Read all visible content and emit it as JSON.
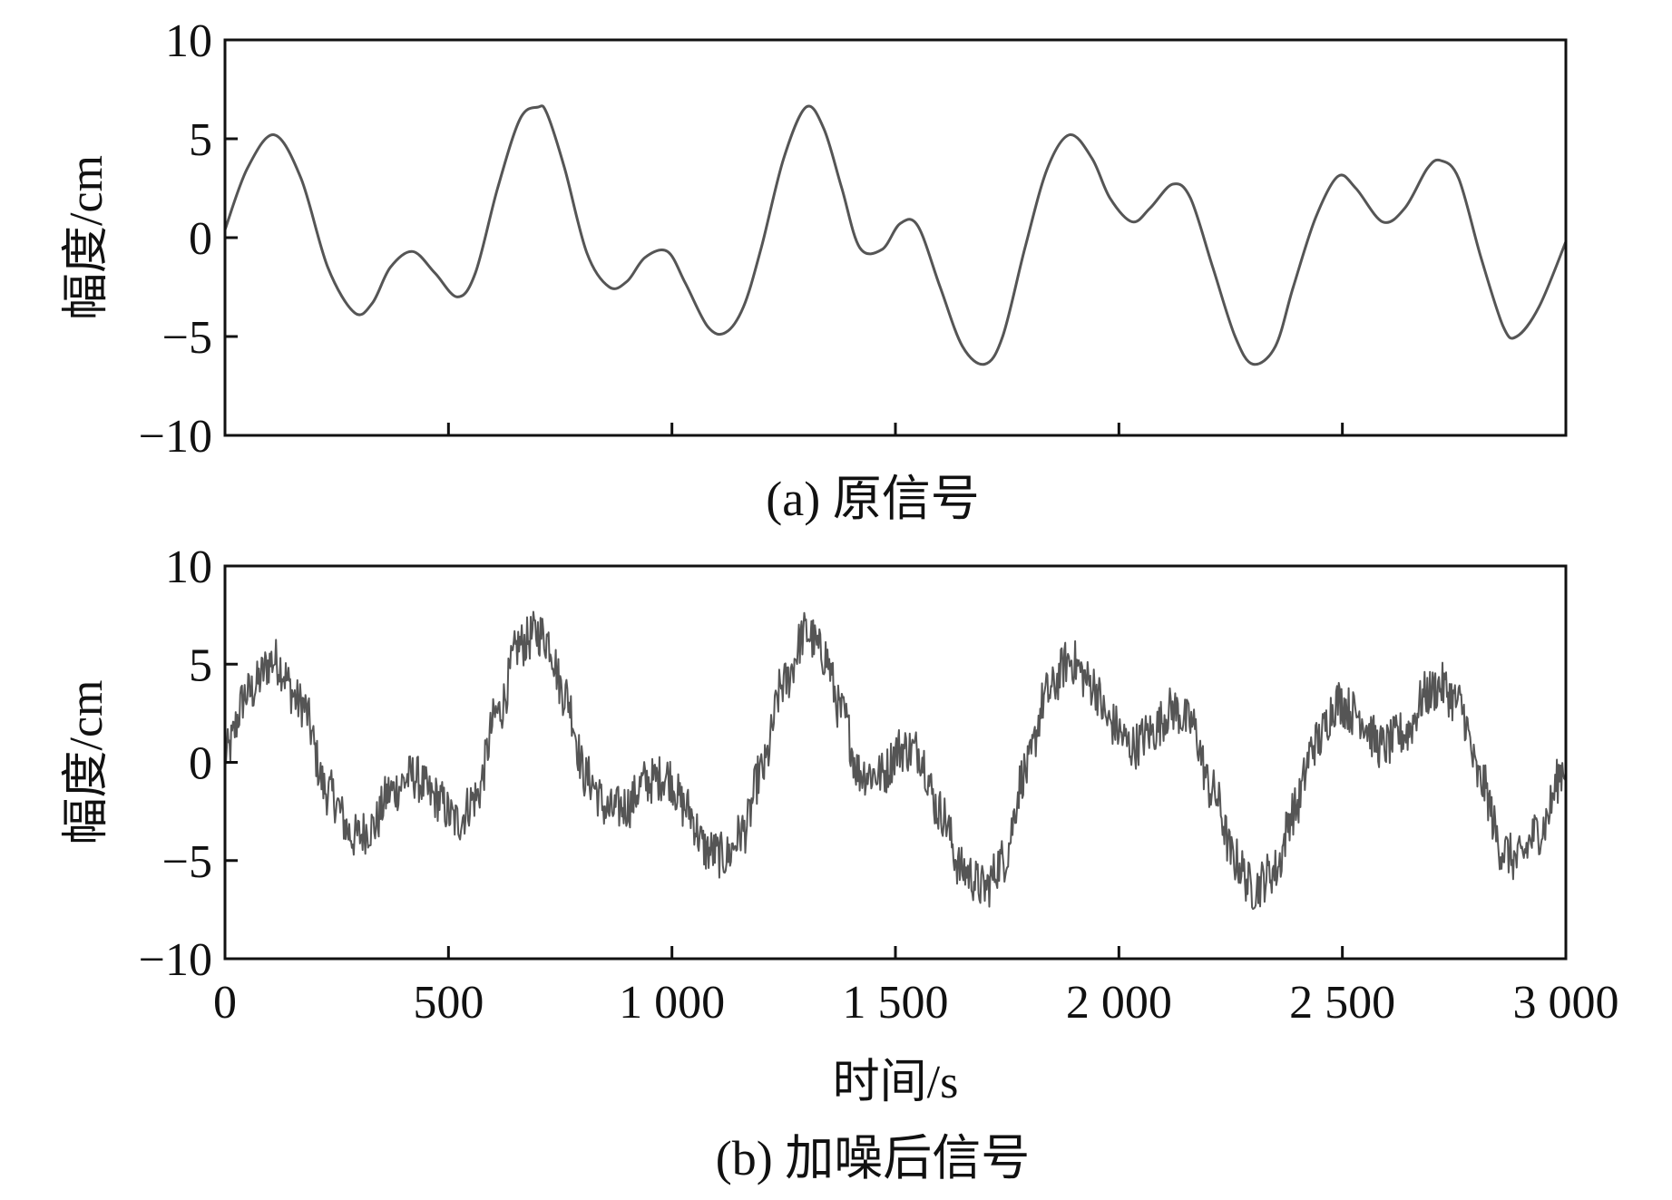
{
  "chart_data": [
    {
      "type": "line",
      "caption": "(a) 原信号",
      "ylabel": "幅度/cm",
      "xlabel": "",
      "xlim": [
        0,
        3000
      ],
      "ylim": [
        -10,
        10
      ],
      "yticks": [
        10,
        5,
        0,
        -5,
        -10
      ],
      "ytick_labels": [
        "10",
        "5",
        "0",
        "−5",
        "−10"
      ],
      "xticks": [
        0,
        500,
        1000,
        1500,
        2000,
        2500,
        3000
      ],
      "xtick_labels": [],
      "line_color": "#555555",
      "noisy": false,
      "series": [
        {
          "x": [
            0,
            50,
            110,
            170,
            230,
            290,
            330,
            370,
            420,
            470,
            520,
            560,
            610,
            660,
            700,
            720,
            760,
            810,
            860,
            900,
            940,
            990,
            1030,
            1080,
            1120,
            1160,
            1200,
            1250,
            1300,
            1340,
            1380,
            1420,
            1470,
            1510,
            1550,
            1600,
            1650,
            1700,
            1740,
            1790,
            1840,
            1890,
            1940,
            1980,
            2030,
            2070,
            2120,
            2160,
            2210,
            2260,
            2300,
            2350,
            2390,
            2440,
            2490,
            2530,
            2590,
            2640,
            2690,
            2720,
            2760,
            2810,
            2860,
            2890,
            2940,
            3000
          ],
          "y": [
            0.4,
            3.5,
            5.2,
            3.0,
            -1.5,
            -3.8,
            -3.3,
            -1.5,
            -0.7,
            -1.8,
            -3.0,
            -1.8,
            2.5,
            6.0,
            6.6,
            6.3,
            3.5,
            -0.8,
            -2.5,
            -2.2,
            -1.0,
            -0.7,
            -2.3,
            -4.5,
            -4.8,
            -3.5,
            -0.5,
            4.0,
            6.6,
            5.5,
            2.5,
            -0.5,
            -0.6,
            0.7,
            0.6,
            -2.5,
            -5.5,
            -6.4,
            -5.0,
            -0.5,
            3.5,
            5.2,
            4.0,
            2.0,
            0.8,
            1.5,
            2.7,
            2.0,
            -1.5,
            -5.0,
            -6.4,
            -5.5,
            -2.5,
            1.0,
            3.1,
            2.5,
            0.8,
            1.5,
            3.5,
            3.9,
            3.0,
            -1.0,
            -4.5,
            -5.0,
            -3.5,
            -0.2
          ]
        }
      ]
    },
    {
      "type": "line",
      "caption": "(b) 加噪后信号",
      "ylabel": "幅度/cm",
      "xlabel": "时间/s",
      "xlim": [
        0,
        3000
      ],
      "ylim": [
        -10,
        10
      ],
      "yticks": [
        10,
        5,
        0,
        -5,
        -10
      ],
      "ytick_labels": [
        "10",
        "5",
        "0",
        "−5",
        "−10"
      ],
      "xticks": [
        0,
        500,
        1000,
        1500,
        2000,
        2500,
        3000
      ],
      "xtick_labels": [
        "0",
        "500",
        "1 000",
        "1 500",
        "2 000",
        "2 500",
        "3 000"
      ],
      "line_color": "#444444",
      "noisy": true,
      "noise_amplitude": 1.2,
      "series": [
        {
          "x": [
            0,
            50,
            110,
            170,
            230,
            290,
            330,
            370,
            420,
            470,
            520,
            560,
            610,
            660,
            700,
            720,
            760,
            810,
            860,
            900,
            940,
            990,
            1030,
            1080,
            1120,
            1160,
            1200,
            1250,
            1300,
            1340,
            1380,
            1420,
            1470,
            1510,
            1550,
            1600,
            1650,
            1700,
            1740,
            1790,
            1840,
            1890,
            1940,
            1980,
            2030,
            2070,
            2120,
            2160,
            2210,
            2260,
            2300,
            2350,
            2390,
            2440,
            2490,
            2530,
            2590,
            2640,
            2690,
            2720,
            2760,
            2810,
            2860,
            2890,
            2940,
            3000
          ],
          "y": [
            0.4,
            3.5,
            5.2,
            3.0,
            -1.5,
            -3.8,
            -3.3,
            -1.5,
            -0.7,
            -1.8,
            -3.0,
            -1.8,
            2.5,
            6.0,
            6.6,
            6.3,
            3.5,
            -0.8,
            -2.5,
            -2.2,
            -1.0,
            -0.7,
            -2.3,
            -4.5,
            -4.8,
            -3.5,
            -0.5,
            4.0,
            6.6,
            5.5,
            2.5,
            -0.5,
            -0.6,
            0.7,
            0.6,
            -2.5,
            -5.5,
            -6.4,
            -5.0,
            -0.5,
            3.5,
            5.2,
            4.0,
            2.0,
            0.8,
            1.5,
            2.7,
            2.0,
            -1.5,
            -5.0,
            -6.4,
            -5.5,
            -2.5,
            1.0,
            3.1,
            2.5,
            0.8,
            1.5,
            3.5,
            3.9,
            3.0,
            -1.0,
            -4.5,
            -5.0,
            -3.5,
            -0.2
          ]
        }
      ]
    }
  ]
}
